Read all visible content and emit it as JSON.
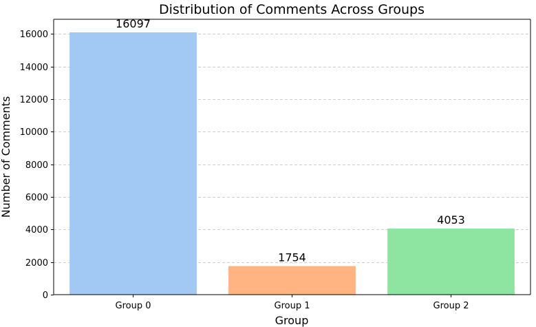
{
  "chart_data": {
    "type": "bar",
    "title": "Distribution of Comments Across Groups",
    "xlabel": "Group",
    "ylabel": "Number of Comments",
    "categories": [
      "Group 0",
      "Group 1",
      "Group 2"
    ],
    "values": [
      16097,
      1754,
      4053
    ],
    "data_labels": [
      "16097",
      "1754",
      "4053"
    ],
    "colors": [
      "#a1c9f4",
      "#ffb482",
      "#8de5a1"
    ],
    "ylim": [
      0,
      16900
    ],
    "yticks": [
      0,
      2000,
      4000,
      6000,
      8000,
      10000,
      12000,
      14000,
      16000
    ],
    "ytick_labels": [
      "0",
      "2000",
      "4000",
      "6000",
      "8000",
      "10000",
      "12000",
      "14000",
      "16000"
    ],
    "grid": true,
    "grid_axis": "y",
    "grid_style": "dashed",
    "legend": "none"
  }
}
